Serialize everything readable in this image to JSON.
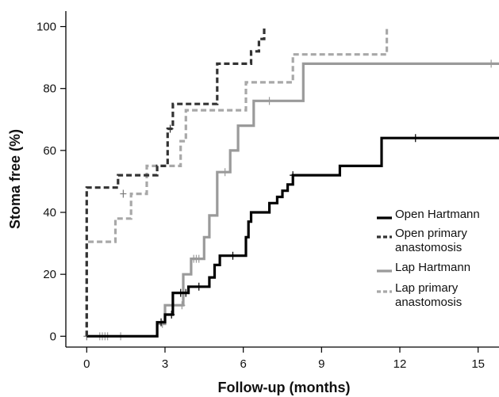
{
  "chart_data": {
    "type": "line",
    "xlabel": "Follow-up (months)",
    "ylabel": "Stoma free (%)",
    "xlim": [
      -0.8,
      15.8
    ],
    "ylim": [
      -3.5,
      105
    ],
    "xticks": [
      0,
      3,
      6,
      9,
      12,
      15
    ],
    "yticks": [
      0,
      20,
      40,
      60,
      80,
      100
    ],
    "legend_position": "right",
    "series": [
      {
        "name": "Open Hartmann",
        "color": "#000000",
        "dashed": false,
        "steps": [
          [
            0,
            0
          ],
          [
            2.7,
            0
          ],
          [
            2.7,
            4.5
          ],
          [
            3.0,
            4.5
          ],
          [
            3.0,
            7
          ],
          [
            3.3,
            7
          ],
          [
            3.3,
            14
          ],
          [
            3.9,
            14
          ],
          [
            3.9,
            16
          ],
          [
            4.7,
            16
          ],
          [
            4.7,
            19
          ],
          [
            4.9,
            19
          ],
          [
            4.9,
            23
          ],
          [
            5.1,
            23
          ],
          [
            5.1,
            26
          ],
          [
            6.1,
            26
          ],
          [
            6.1,
            32
          ],
          [
            6.2,
            32
          ],
          [
            6.2,
            37
          ],
          [
            6.3,
            37
          ],
          [
            6.3,
            40
          ],
          [
            7.0,
            40
          ],
          [
            7.0,
            43
          ],
          [
            7.3,
            43
          ],
          [
            7.3,
            45
          ],
          [
            7.5,
            45
          ],
          [
            7.5,
            47
          ],
          [
            7.7,
            47
          ],
          [
            7.7,
            49
          ],
          [
            7.9,
            49
          ],
          [
            7.9,
            52
          ],
          [
            9.7,
            52
          ],
          [
            9.7,
            55
          ],
          [
            11.3,
            55
          ],
          [
            11.3,
            64
          ],
          [
            15.8,
            64
          ]
        ],
        "censor": [
          [
            2.85,
            4.5
          ],
          [
            3.25,
            7
          ],
          [
            3.6,
            14
          ],
          [
            3.8,
            14
          ],
          [
            4.3,
            16
          ],
          [
            5.6,
            26
          ],
          [
            7.9,
            52
          ],
          [
            12.6,
            64
          ]
        ]
      },
      {
        "name": "Open primary anastomosis",
        "color": "#333333",
        "dashed": true,
        "steps": [
          [
            0,
            0
          ],
          [
            0,
            48
          ],
          [
            1.2,
            48
          ],
          [
            1.2,
            52
          ],
          [
            2.7,
            52
          ],
          [
            2.7,
            55
          ],
          [
            3.1,
            55
          ],
          [
            3.1,
            67
          ],
          [
            3.3,
            67
          ],
          [
            3.3,
            75
          ],
          [
            5.0,
            75
          ],
          [
            5.0,
            88
          ],
          [
            6.3,
            88
          ],
          [
            6.3,
            92
          ],
          [
            6.6,
            92
          ],
          [
            6.6,
            96
          ],
          [
            6.8,
            96
          ],
          [
            6.8,
            100
          ]
        ],
        "censor": [
          [
            3.2,
            67
          ]
        ]
      },
      {
        "name": "Lap Hartmann",
        "color": "#9a9a9a",
        "dashed": false,
        "steps": [
          [
            0,
            0
          ],
          [
            2.7,
            0
          ],
          [
            2.7,
            4
          ],
          [
            3.0,
            4
          ],
          [
            3.0,
            10
          ],
          [
            3.7,
            10
          ],
          [
            3.7,
            20
          ],
          [
            4.0,
            20
          ],
          [
            4.0,
            25
          ],
          [
            4.5,
            25
          ],
          [
            4.5,
            32
          ],
          [
            4.7,
            32
          ],
          [
            4.7,
            39
          ],
          [
            5.0,
            39
          ],
          [
            5.0,
            53
          ],
          [
            5.5,
            53
          ],
          [
            5.5,
            60
          ],
          [
            5.8,
            60
          ],
          [
            5.8,
            68
          ],
          [
            6.4,
            68
          ],
          [
            6.4,
            76
          ],
          [
            8.3,
            76
          ],
          [
            8.3,
            88
          ],
          [
            15.8,
            88
          ]
        ],
        "censor": [
          [
            0.5,
            0
          ],
          [
            0.6,
            0
          ],
          [
            0.7,
            0
          ],
          [
            0.8,
            0
          ],
          [
            1.3,
            0
          ],
          [
            2.9,
            4
          ],
          [
            3.65,
            10
          ],
          [
            4.1,
            25
          ],
          [
            4.2,
            25
          ],
          [
            4.3,
            25
          ],
          [
            5.3,
            53
          ],
          [
            7.0,
            76
          ],
          [
            15.5,
            88
          ]
        ]
      },
      {
        "name": "Lap primary anastomosis",
        "color": "#a8a8a8",
        "dashed": true,
        "steps": [
          [
            0,
            0
          ],
          [
            0,
            30.5
          ],
          [
            1.1,
            30.5
          ],
          [
            1.1,
            38
          ],
          [
            1.7,
            38
          ],
          [
            1.7,
            46
          ],
          [
            2.3,
            46
          ],
          [
            2.3,
            55
          ],
          [
            3.6,
            55
          ],
          [
            3.6,
            63
          ],
          [
            3.8,
            63
          ],
          [
            3.8,
            73
          ],
          [
            6.1,
            73
          ],
          [
            6.1,
            82
          ],
          [
            7.9,
            82
          ],
          [
            7.9,
            91
          ],
          [
            11.5,
            91
          ],
          [
            11.5,
            100
          ]
        ],
        "censor": [
          [
            1.4,
            46
          ],
          [
            0.0,
            0
          ]
        ]
      }
    ]
  }
}
